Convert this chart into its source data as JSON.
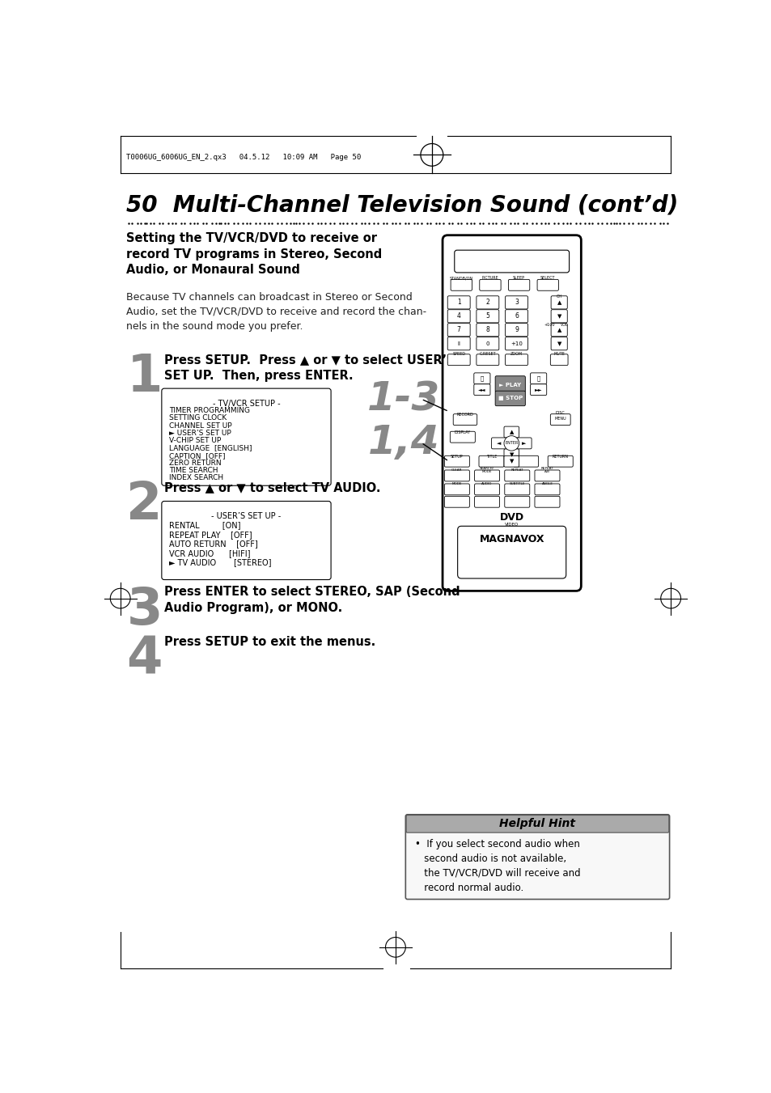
{
  "bg_color": "#ffffff",
  "page_width": 9.54,
  "page_height": 13.51,
  "header_text": "T0006UG_6006UG_EN_2.qx3   04.5.12   10:09 AM   Page 50",
  "title": "50  Multi-Channel Television Sound (cont’d)",
  "section_heading": "Setting the TV/VCR/DVD to receive or\nrecord TV programs in Stereo, Second\nAudio, or Monaural Sound",
  "body_text": "Because TV channels can broadcast in Stereo or Second\nAudio, set the TV/VCR/DVD to receive and record the chan-\nnels in the sound mode you prefer.",
  "step1_box_title": "- TV/VCR SETUP -",
  "step1_box_lines": [
    "TIMER PROGRAMMING",
    "SETTING CLOCK",
    "CHANNEL SET UP",
    "► USER’S SET UP",
    "V-CHIP SET UP",
    "LANGUAGE  [ENGLISH]",
    "CAPTION  [OFF]",
    "ZERO RETURN",
    "TIME SEARCH",
    "INDEX SEARCH"
  ],
  "step2_box_title": "- USER’S SET UP -",
  "step2_box_lines": [
    "RENTAL         [ON]",
    "REPEAT PLAY    [OFF]",
    "AUTO RETURN    [OFF]",
    "VCR AUDIO      [HIFI]",
    "► TV AUDIO       [STEREO]"
  ],
  "hint_box_title": "Helpful Hint",
  "hint_box_text": "•  If you select second audio when\n   second audio is not available,\n   the TV/VCR/DVD will receive and\n   record normal audio.",
  "label_13": "1-3",
  "label_14": "1,4"
}
